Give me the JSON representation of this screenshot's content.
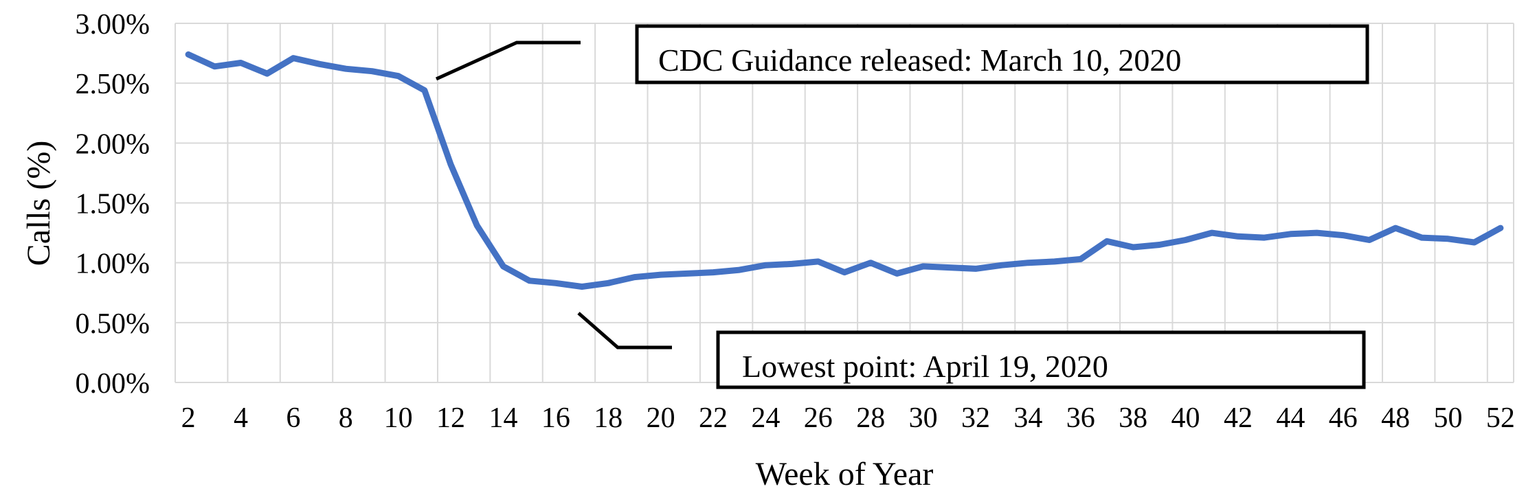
{
  "chart_data": {
    "type": "line",
    "title": "",
    "xlabel": "Week of Year",
    "ylabel": "Calls (%)",
    "x": [
      2,
      3,
      4,
      5,
      6,
      7,
      8,
      9,
      10,
      11,
      12,
      13,
      14,
      15,
      16,
      17,
      18,
      19,
      20,
      21,
      22,
      23,
      24,
      25,
      26,
      27,
      28,
      29,
      30,
      31,
      32,
      33,
      34,
      35,
      36,
      37,
      38,
      39,
      40,
      41,
      42,
      43,
      44,
      45,
      46,
      47,
      48,
      49,
      50,
      51,
      52
    ],
    "series": [
      {
        "name": "Calls",
        "color": "#4472C4",
        "values": [
          2.74,
          2.64,
          2.67,
          2.58,
          2.71,
          2.66,
          2.62,
          2.6,
          2.56,
          2.44,
          1.82,
          1.31,
          0.97,
          0.85,
          0.83,
          0.8,
          0.83,
          0.88,
          0.9,
          0.91,
          0.92,
          0.94,
          0.98,
          0.99,
          1.01,
          0.92,
          1.0,
          0.91,
          0.97,
          0.96,
          0.95,
          0.98,
          1.0,
          1.01,
          1.03,
          1.18,
          1.13,
          1.15,
          1.19,
          1.25,
          1.22,
          1.21,
          1.24,
          1.25,
          1.23,
          1.19,
          1.29,
          1.21,
          1.2,
          1.17,
          1.29
        ]
      }
    ],
    "ylim": [
      0.0,
      3.0
    ],
    "ytick_step": 0.5,
    "xtick_step": 2,
    "ytick_labels": [
      "3.00%",
      "2.50%",
      "2.00%",
      "1.50%",
      "1.00%",
      "0.50%",
      "0.00%"
    ],
    "xtick_labels": [
      "2",
      "4",
      "6",
      "8",
      "10",
      "12",
      "14",
      "16",
      "18",
      "20",
      "22",
      "24",
      "26",
      "28",
      "30",
      "32",
      "34",
      "36",
      "38",
      "40",
      "42",
      "44",
      "46",
      "48",
      "50",
      "52"
    ],
    "grid": true,
    "gridline_color": "#D9D9D9",
    "legend": "none",
    "annotations": [
      {
        "text": "CDC Guidance released: March 10, 2020",
        "target_week": 11,
        "target_value": 2.44
      },
      {
        "text": "Lowest point: April 19, 2020",
        "target_week": 17,
        "target_value": 0.8
      }
    ]
  }
}
